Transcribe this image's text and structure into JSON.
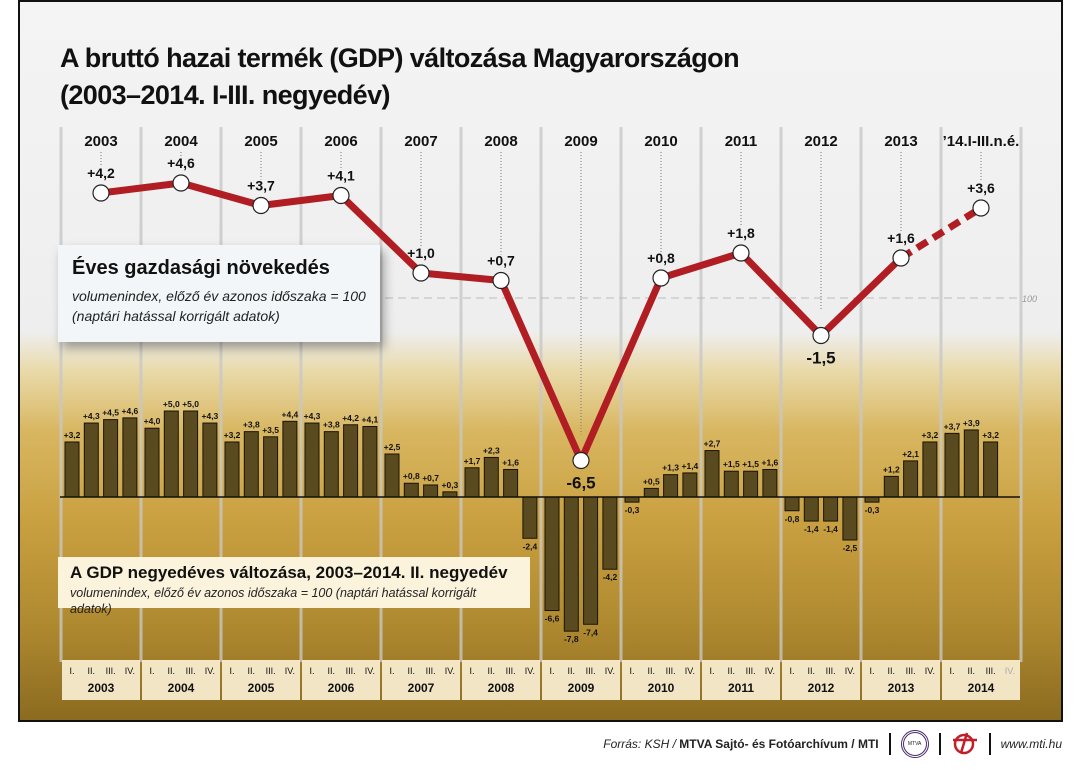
{
  "title_line1": "A bruttó hazai termék (GDP) változása Magyarországon",
  "title_line2": "(2003–2014. I-III. negyedév)",
  "annual_box": {
    "title": "Éves gazdasági növekedés",
    "line1": "volumenindex, előző év azonos időszaka = 100",
    "line2": "(naptári hatással korrigált adatok)"
  },
  "quarterly_box": {
    "title": "A GDP negyedéves változása, 2003–2014. II. negyedév",
    "line1": "volumenindex, előző év azonos időszaka = 100 (naptári hatással korrigált adatok)"
  },
  "footer": {
    "source_prefix": "Forrás: KSH / ",
    "source_bold": "MTVA Sajtó- és Fotóarchívum / MTI",
    "logo1": "MTVA",
    "url": "www.mti.hu"
  },
  "colors": {
    "line": "#b01e24",
    "bar": "#5a4a20",
    "frame": "#111111"
  },
  "chart_data": [
    {
      "type": "line",
      "title": "Éves gazdasági növekedés",
      "categories": [
        "2003",
        "2004",
        "2005",
        "2006",
        "2007",
        "2008",
        "2009",
        "2010",
        "2011",
        "2012",
        "2013",
        "’14.I-III.n.é."
      ],
      "values": [
        4.2,
        4.6,
        3.7,
        4.1,
        1.0,
        0.7,
        -6.5,
        0.8,
        1.8,
        -1.5,
        1.6,
        3.6
      ],
      "labels": [
        "+4,2",
        "+4,6",
        "+3,7",
        "+4,1",
        "+1,0",
        "+0,7",
        "-6,5",
        "+0,8",
        "+1,8",
        "-1,5",
        "+1,6",
        "+3,6"
      ],
      "dashed_last_segment": true,
      "reference_line": {
        "value": 0,
        "label": "100"
      }
    },
    {
      "type": "bar",
      "title": "A GDP negyedéves változása, 2003–2014. II. negyedév",
      "years": [
        "2003",
        "2004",
        "2005",
        "2006",
        "2007",
        "2008",
        "2009",
        "2010",
        "2011",
        "2012",
        "2013",
        "2014"
      ],
      "quarters": [
        "I.",
        "II.",
        "III.",
        "IV."
      ],
      "values": [
        [
          3.2,
          4.3,
          4.5,
          4.6
        ],
        [
          4.0,
          5.0,
          5.0,
          4.3
        ],
        [
          3.2,
          3.8,
          3.5,
          4.4
        ],
        [
          4.3,
          3.8,
          4.2,
          4.1
        ],
        [
          2.5,
          0.8,
          0.7,
          0.3
        ],
        [
          1.7,
          2.3,
          1.6,
          -2.4
        ],
        [
          -6.6,
          -7.8,
          -7.4,
          -4.2
        ],
        [
          -0.3,
          0.5,
          1.3,
          1.4
        ],
        [
          2.7,
          1.5,
          1.5,
          1.6
        ],
        [
          -0.8,
          -1.4,
          -1.4,
          -2.5
        ],
        [
          -0.3,
          1.2,
          2.1,
          3.2
        ],
        [
          3.7,
          3.9,
          3.2,
          null
        ]
      ],
      "labels": [
        [
          "+3,2",
          "+4,3",
          "+4,5",
          "+4,6"
        ],
        [
          "+4,0",
          "+5,0",
          "+5,0",
          "+4,3"
        ],
        [
          "+3,2",
          "+3,8",
          "+3,5",
          "+4,4"
        ],
        [
          "+4,3",
          "+3,8",
          "+4,2",
          "+4,1"
        ],
        [
          "+2,5",
          "+0,8",
          "+0,7",
          "+0,3"
        ],
        [
          "+1,7",
          "+2,3",
          "+1,6",
          "-2,4"
        ],
        [
          "-6,6",
          "-7,8",
          "-7,4",
          "-4,2"
        ],
        [
          "-0,3",
          "+0,5",
          "+1,3",
          "+1,4"
        ],
        [
          "+2,7",
          "+1,5",
          "+1,5",
          "+1,6"
        ],
        [
          "-0,8",
          "-1,4",
          "-1,4",
          "-2,5"
        ],
        [
          "-0,3",
          "+1,2",
          "+2,1",
          "+3,2"
        ],
        [
          "+3,7",
          "+3,9",
          "+3,2",
          ""
        ]
      ]
    }
  ]
}
